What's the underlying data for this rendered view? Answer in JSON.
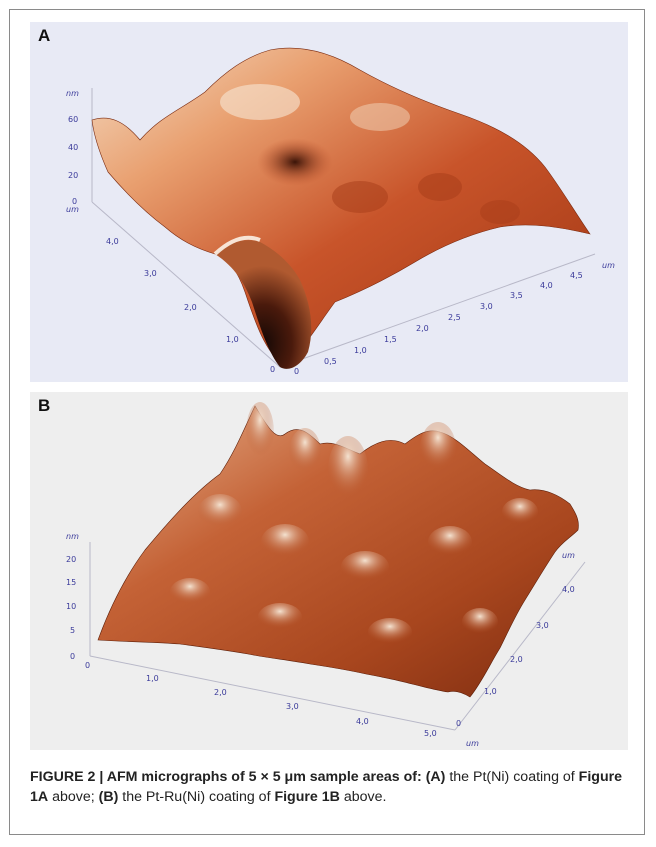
{
  "figure": {
    "panels": [
      {
        "label": "A",
        "z_unit": "nm",
        "z_ticks": [
          "60",
          "40",
          "20",
          "0"
        ],
        "y_unit": "um",
        "y_ticks": [
          "4,0",
          "3,0",
          "2,0",
          "1,0",
          "0"
        ],
        "x_unit": "um",
        "x_ticks": [
          "0",
          "0,5",
          "1,0",
          "1,5",
          "2,0",
          "2,5",
          "3,0",
          "3,5",
          "4,0",
          "4,5"
        ]
      },
      {
        "label": "B",
        "z_unit": "nm",
        "z_ticks": [
          "20",
          "15",
          "10",
          "5",
          "0"
        ],
        "x_ticks": [
          "0",
          "1,0",
          "2,0",
          "3,0",
          "4,0",
          "5,0"
        ],
        "x_unit": "um",
        "y_unit": "um",
        "y_ticks": [
          "0",
          "1,0",
          "2,0",
          "3,0",
          "4,0"
        ]
      }
    ],
    "caption": {
      "lead": "FIGURE 2 | AFM micrographs of 5 × 5 μm sample areas of:",
      "label_a": "(A)",
      "text_1": " the Pt(Ni) coating of ",
      "ref_a": "Figure 1A",
      "text_2": " above; ",
      "label_b": "(B)",
      "text_3": " the Pt-Ru(Ni) coating of ",
      "ref_b": "Figure 1B",
      "text_4": " above."
    }
  }
}
